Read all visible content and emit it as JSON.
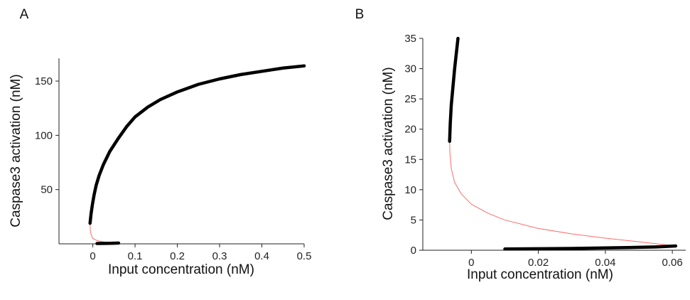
{
  "chart_data": [
    {
      "panel_label": "A",
      "type": "line",
      "xlabel": "Input concentration (nM)",
      "ylabel": "Caspase3 activation (nM)",
      "xlim": [
        -0.08,
        0.5
      ],
      "ylim": [
        0,
        171
      ],
      "xticks": [
        0,
        0.1,
        0.2,
        0.3,
        0.4,
        0.5
      ],
      "xtick_labels": [
        "0",
        "0.1",
        "0.2",
        "0.3",
        "0.4",
        "0.5"
      ],
      "yticks": [
        50,
        100,
        150
      ],
      "ytick_labels": [
        "50",
        "100",
        "150"
      ],
      "grid": false,
      "series": [
        {
          "style": "stable",
          "color": "#000000",
          "points": [
            [
              -0.0065,
              19
            ],
            [
              -0.004,
              28
            ],
            [
              -0.001,
              36
            ],
            [
              0.003,
              45
            ],
            [
              0.008,
              54
            ],
            [
              0.015,
              63
            ],
            [
              0.025,
              73
            ],
            [
              0.04,
              85
            ],
            [
              0.06,
              97
            ],
            [
              0.08,
              108
            ],
            [
              0.1,
              117
            ],
            [
              0.13,
              126
            ],
            [
              0.16,
              133
            ],
            [
              0.2,
              140
            ],
            [
              0.25,
              147
            ],
            [
              0.3,
              152
            ],
            [
              0.35,
              156
            ],
            [
              0.4,
              159
            ],
            [
              0.45,
              162
            ],
            [
              0.5,
              164
            ]
          ]
        },
        {
          "style": "unstable",
          "color": "#ff6b6b",
          "points": [
            [
              -0.0065,
              19
            ],
            [
              -0.006,
              13
            ],
            [
              -0.004,
              8.5
            ],
            [
              0.0,
              5
            ],
            [
              0.01,
              3
            ],
            [
              0.02,
              2.2
            ],
            [
              0.03,
              1.6
            ],
            [
              0.04,
              1.2
            ],
            [
              0.05,
              0.9
            ],
            [
              0.061,
              0.7
            ]
          ]
        },
        {
          "style": "stable",
          "color": "#000000",
          "points": [
            [
              0.01,
              0.3
            ],
            [
              0.03,
              0.4
            ],
            [
              0.05,
              0.55
            ],
            [
              0.061,
              0.7
            ]
          ]
        }
      ]
    },
    {
      "panel_label": "B",
      "type": "line",
      "xlabel": "Input concentration (nM)",
      "ylabel": "Caspase3 activation (nM)",
      "xlim": [
        -0.0145,
        0.064
      ],
      "ylim": [
        0,
        35
      ],
      "xticks": [
        0,
        0.02,
        0.04,
        0.06
      ],
      "xtick_labels": [
        "0",
        "0.02",
        "0.04",
        "0.06"
      ],
      "yticks": [
        0,
        5,
        10,
        15,
        20,
        25,
        30,
        35
      ],
      "ytick_labels": [
        "0",
        "5",
        "10",
        "15",
        "20",
        "25",
        "30",
        "35"
      ],
      "grid": false,
      "series": [
        {
          "style": "stable",
          "color": "#000000",
          "points": [
            [
              -0.0065,
              18
            ],
            [
              -0.0063,
              21
            ],
            [
              -0.006,
              24
            ],
            [
              -0.0055,
              27
            ],
            [
              -0.005,
              30
            ],
            [
              -0.0045,
              32.5
            ],
            [
              -0.004,
              35
            ]
          ]
        },
        {
          "style": "unstable",
          "color": "#ff6b6b",
          "points": [
            [
              -0.0065,
              18
            ],
            [
              -0.0064,
              16
            ],
            [
              -0.006,
              13.5
            ],
            [
              -0.005,
              11.2
            ],
            [
              -0.003,
              9.3
            ],
            [
              0.0,
              7.6
            ],
            [
              0.005,
              6.1
            ],
            [
              0.01,
              5.0
            ],
            [
              0.02,
              3.6
            ],
            [
              0.03,
              2.7
            ],
            [
              0.04,
              2.0
            ],
            [
              0.05,
              1.4
            ],
            [
              0.061,
              0.7
            ]
          ]
        },
        {
          "style": "stable",
          "color": "#000000",
          "points": [
            [
              0.01,
              0.2
            ],
            [
              0.02,
              0.25
            ],
            [
              0.03,
              0.3
            ],
            [
              0.04,
              0.38
            ],
            [
              0.05,
              0.48
            ],
            [
              0.055,
              0.55
            ],
            [
              0.061,
              0.7
            ]
          ]
        }
      ]
    }
  ]
}
